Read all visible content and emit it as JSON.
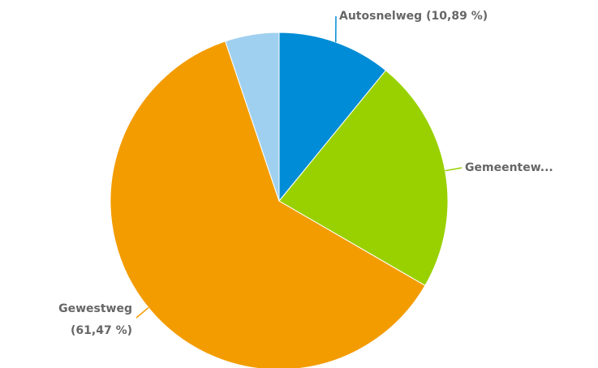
{
  "chart_data": {
    "type": "pie",
    "categories": [
      "Autosnelweg",
      "Gemeentew...",
      "Gewestweg",
      null
    ],
    "values": [
      10.89,
      22.47,
      61.47,
      5.17
    ],
    "value_labels": [
      "(10,89 %)",
      null,
      "(61,47 %)",
      null
    ],
    "colors": [
      "#008cd6",
      "#99d100",
      "#f39c00",
      "#a0d0ef"
    ]
  }
}
